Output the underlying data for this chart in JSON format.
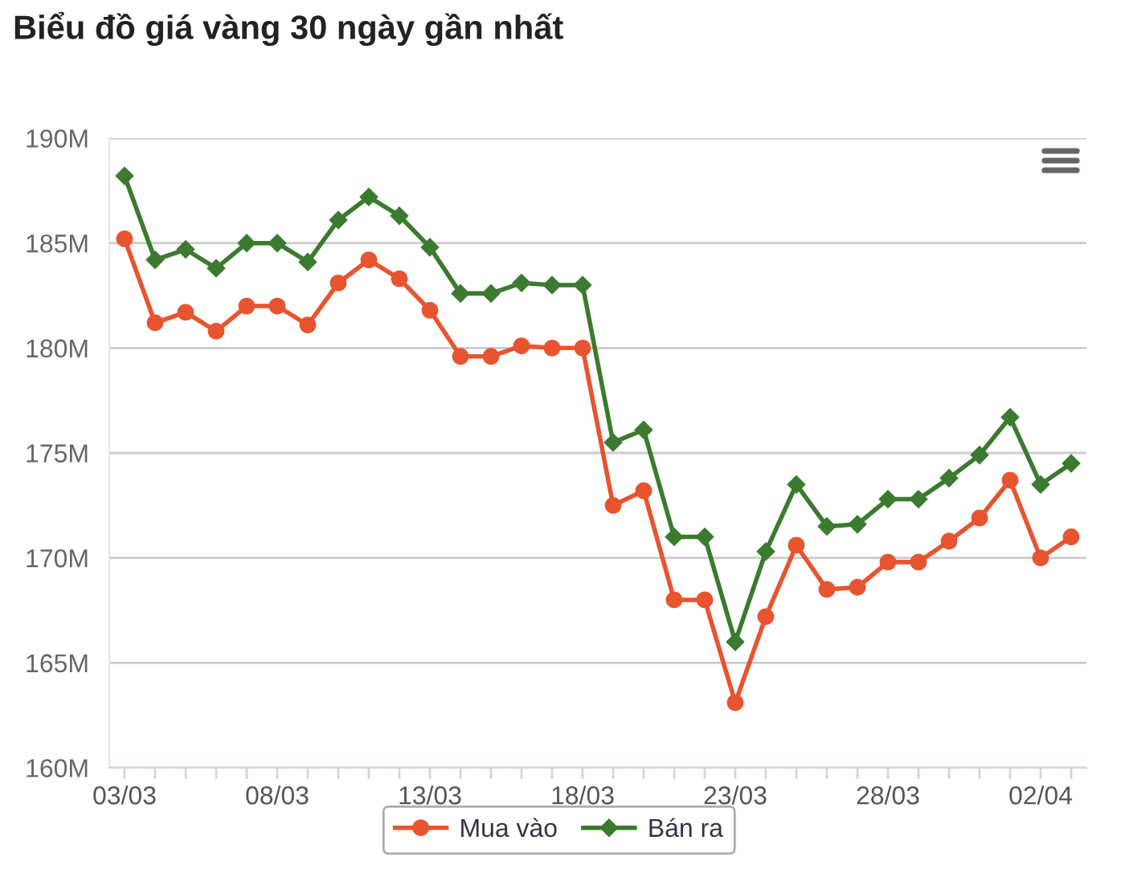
{
  "chart_data": {
    "type": "line",
    "title": "Biểu đồ giá vàng 30 ngày gần nhất",
    "categories": [
      "03/03",
      null,
      null,
      null,
      null,
      "08/03",
      null,
      null,
      null,
      null,
      "13/03",
      null,
      null,
      null,
      null,
      "18/03",
      null,
      null,
      null,
      null,
      "23/03",
      null,
      null,
      null,
      null,
      "28/03",
      null,
      null,
      null,
      null,
      "02/04",
      null
    ],
    "series": [
      {
        "name": "Mua vào",
        "color": "#e8542f",
        "marker": "circle",
        "values": [
          185.2,
          181.2,
          181.7,
          180.8,
          182.0,
          182.0,
          181.1,
          183.1,
          184.2,
          183.3,
          181.8,
          179.6,
          179.6,
          180.1,
          180.0,
          180.0,
          172.5,
          173.2,
          168.0,
          168.0,
          163.1,
          167.2,
          170.6,
          168.5,
          168.6,
          169.8,
          169.8,
          170.8,
          171.9,
          173.7,
          170.0,
          171.0
        ]
      },
      {
        "name": "Bán ra",
        "color": "#3b7a2f",
        "marker": "diamond",
        "values": [
          188.2,
          184.2,
          184.7,
          183.8,
          185.0,
          185.0,
          184.1,
          186.1,
          187.2,
          186.3,
          184.8,
          182.6,
          182.6,
          183.1,
          183.0,
          183.0,
          175.5,
          176.1,
          171.0,
          171.0,
          166.0,
          170.3,
          173.5,
          171.5,
          171.6,
          172.8,
          172.8,
          173.8,
          174.9,
          176.7,
          173.5,
          174.5
        ]
      }
    ],
    "ylim": [
      160,
      190
    ],
    "yticks": [
      {
        "value": 160,
        "label": "160M"
      },
      {
        "value": 165,
        "label": "165M"
      },
      {
        "value": 170,
        "label": "170M"
      },
      {
        "value": 175,
        "label": "175M"
      },
      {
        "value": 180,
        "label": "180M"
      },
      {
        "value": 185,
        "label": "185M"
      },
      {
        "value": 190,
        "label": "190M"
      }
    ],
    "grid": "y",
    "legend": "bottom",
    "line_style": "solid"
  }
}
